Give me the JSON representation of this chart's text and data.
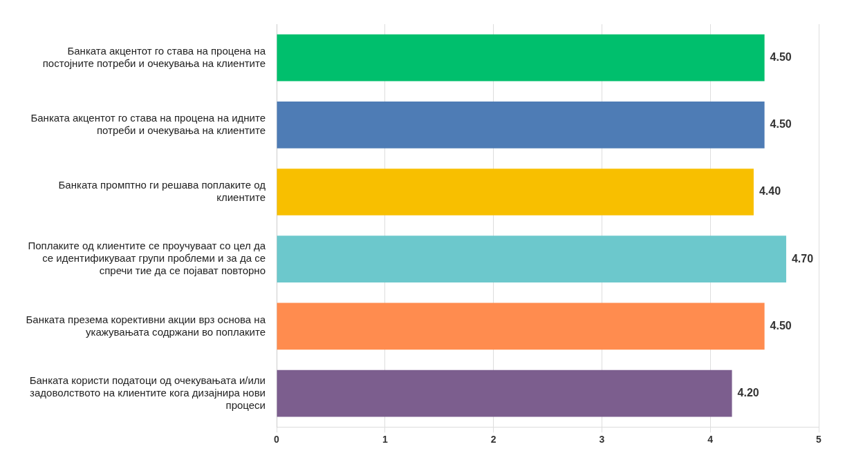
{
  "chart_data": {
    "type": "bar",
    "orientation": "horizontal",
    "categories": [
      "Банката акцентот го става на процена на постојните потреби и очекувања на клиентите",
      "Банката акцентот го става на процена на идните потреби и очекувања на клиентите",
      "Банката промптно ги решава поплаките од клиентите",
      "Поплаките од клиентите се проучуваат со цел да се идентификуваат групи проблеми и за да се спречи тие да се појават повторно",
      "Банката презема корективни акции врз основа на укажувањата содржани во поплаките",
      "Банката користи податоци од очекувањата и/или задоволството на клиентите кога дизајнира нови процеси"
    ],
    "values": [
      4.5,
      4.5,
      4.4,
      4.7,
      4.5,
      4.2
    ],
    "colors": [
      "#00bf6d",
      "#4e7cb5",
      "#f8bf00",
      "#6cc8cc",
      "#ff8c4f",
      "#7c5e8e"
    ],
    "value_labels": [
      "4.50",
      "4.50",
      "4.40",
      "4.70",
      "4.50",
      "4.20"
    ],
    "xlim": [
      0,
      5
    ],
    "xticks": [
      0,
      1,
      2,
      3,
      4,
      5
    ],
    "grid": "x",
    "legend": false
  }
}
